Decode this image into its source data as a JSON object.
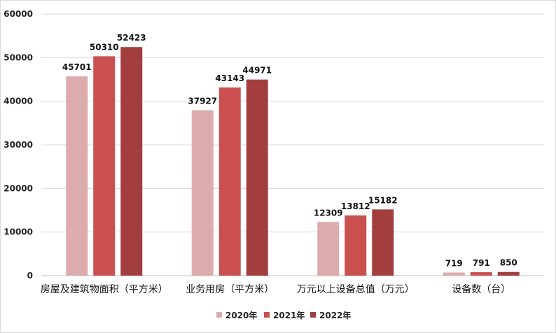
{
  "chart_data": {
    "type": "bar",
    "categories": [
      "房屋及建筑物面积（平方米）",
      "业务用房（平方米）",
      "万元以上设备总值（万元）",
      "设备数（台）"
    ],
    "series": [
      {
        "name": "2020年",
        "color": "#dcabac",
        "values": [
          45701,
          37927,
          12309,
          719
        ]
      },
      {
        "name": "2021年",
        "color": "#c9504f",
        "values": [
          50310,
          43143,
          13812,
          791
        ]
      },
      {
        "name": "2022年",
        "color": "#a33e3f",
        "values": [
          52423,
          44971,
          15182,
          850
        ]
      }
    ],
    "ylim": [
      0,
      60000
    ],
    "yticks": [
      0,
      10000,
      20000,
      30000,
      40000,
      50000,
      60000
    ],
    "grid": true,
    "legend_position": "bottom",
    "title": "",
    "xlabel": "",
    "ylabel": ""
  }
}
